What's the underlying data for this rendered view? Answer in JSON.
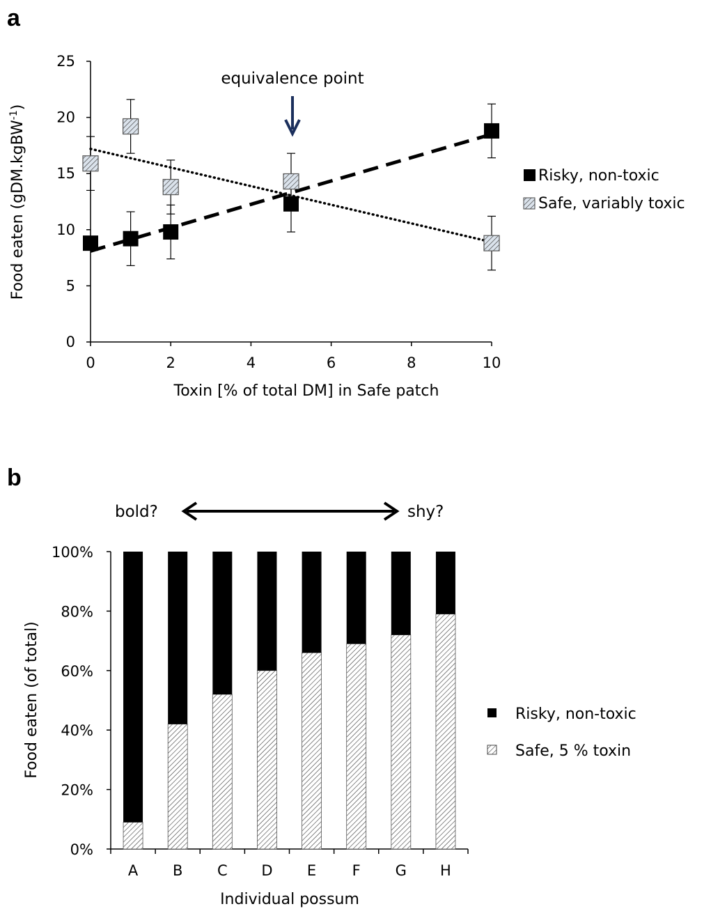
{
  "colors": {
    "risky": "#000000",
    "safe_fill": "#dbe3ec",
    "arrow_navy": "#1b2f5c"
  },
  "chart_data": [
    {
      "panel": "a",
      "type": "scatter",
      "xlabel": "Toxin [% of total DM] in Safe patch",
      "ylabel": "Food eaten (gDM.kgBW",
      "ylabel_sup": "-1",
      "ylabel_end": ")",
      "xlim": [
        0,
        10
      ],
      "ylim": [
        0,
        25
      ],
      "xticks": [
        "0",
        "2",
        "4",
        "6",
        "8",
        "10"
      ],
      "yticks": [
        "0",
        "5",
        "10",
        "15",
        "20",
        "25"
      ],
      "grid": false,
      "legend_position": "right",
      "annotation": "equivalence point",
      "annotation_x": 5,
      "series": [
        {
          "name": "Risky, non-toxic",
          "marker": "filled-square",
          "x": [
            0,
            1,
            2,
            5,
            10
          ],
          "y": [
            8.8,
            9.2,
            9.8,
            12.3,
            18.8
          ],
          "err": [
            0,
            2.4,
            2.4,
            2.5,
            2.4
          ],
          "trend": {
            "style": "dashed",
            "intercept": 8.1,
            "slope": 1.04
          }
        },
        {
          "name": "Safe, variably toxic",
          "marker": "hatched-square",
          "x": [
            0,
            1,
            2,
            5,
            10
          ],
          "y": [
            15.9,
            19.2,
            13.8,
            14.3,
            8.8
          ],
          "err": [
            2.4,
            2.4,
            2.4,
            2.5,
            2.4
          ],
          "trend": {
            "style": "dotted",
            "intercept": 17.2,
            "slope": -0.83
          }
        }
      ]
    },
    {
      "panel": "b",
      "type": "bar",
      "stacked": true,
      "xlabel": "Individual possum",
      "ylabel": "Food eaten (of total)",
      "categories": [
        "A",
        "B",
        "C",
        "D",
        "E",
        "F",
        "G",
        "H"
      ],
      "ylim": [
        0,
        100
      ],
      "yticks": [
        "0%",
        "20%",
        "40%",
        "60%",
        "80%",
        "100%"
      ],
      "grid": false,
      "legend_position": "right",
      "annotation_left": "bold?",
      "annotation_right": "shy?",
      "series": [
        {
          "name": "Safe, 5 % toxin",
          "pattern": "hatched",
          "values": [
            9,
            42,
            52,
            60,
            66,
            69,
            72,
            79
          ]
        },
        {
          "name": "Risky, non-toxic",
          "pattern": "solid",
          "values": [
            91,
            58,
            48,
            40,
            34,
            31,
            28,
            21
          ]
        }
      ]
    }
  ]
}
